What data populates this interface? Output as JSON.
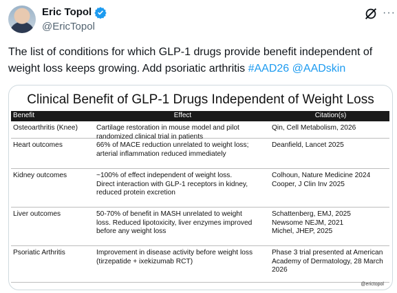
{
  "post": {
    "author_name": "Eric Topol",
    "author_handle": "@EricTopol",
    "text_main": "The list of conditions for which GLP-1 drugs provide benefit independent of weight loss keeps growing. Add psoriatic arthritis ",
    "hashtag": "#AAD26",
    "mention": "@AADskin"
  },
  "icons": {
    "verified": "verified-badge-icon",
    "grok": "grok-icon",
    "more": "more-icon"
  },
  "colors": {
    "accent": "#1d9bf0",
    "text": "#0f1419",
    "muted": "#536471"
  },
  "image": {
    "title": "Clinical Benefit of GLP-1 Drugs Independent of Weight Loss",
    "headers": [
      "Benefit",
      "Effect",
      "Citation(s)"
    ],
    "rows": [
      {
        "benefit": "Osteoarthritis (Knee)",
        "effect": "Cartilage restoration in mouse model and pilot\nrandomized clinical trial in patients",
        "citation": "Qin, Cell Metabolism, 2026"
      },
      {
        "benefit": "Heart outcomes",
        "effect": "66% of MACE reduction unrelated to weight loss;\narterial inflammation reduced immediately",
        "citation": "Deanfield, Lancet 2025"
      },
      {
        "benefit": "Kidney outcomes",
        "effect": "~100% of effect independent of weight loss.\nDirect interaction with GLP-1 receptors in kidney,\nreduced protein excretion",
        "citation": "Colhoun, Nature Medicine 2024\nCooper, J Clin Inv 2025"
      },
      {
        "benefit": "Liver outcomes",
        "effect": "50-70% of benefit in MASH unrelated to weight\nloss. Reduced lipotoxicity, liver enzymes improved\nbefore any weight loss",
        "citation": "Schattenberg, EMJ, 2025\nNewsome NEJM, 2021\nMichel, JHEP, 2025"
      },
      {
        "benefit": "Psoriatic Arthritis",
        "effect": "Improvement in disease activity before weight loss\n(tirzepatide + ixekizumab RCT)",
        "citation": "Phase 3 trial presented at American\nAcademy of Dermatology, 28 March\n2026"
      }
    ],
    "credit": "@erictopol"
  }
}
